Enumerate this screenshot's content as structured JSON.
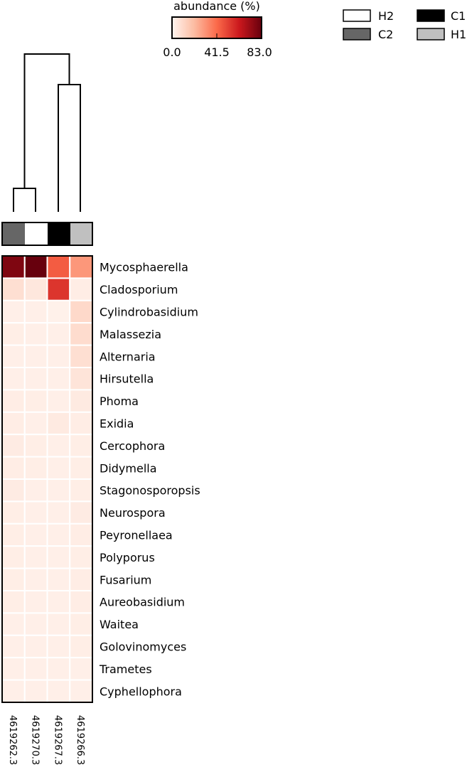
{
  "colorbar": {
    "title": "abundance (%)",
    "ticks": [
      "0.0",
      "41.5",
      "83.0"
    ],
    "min": 0,
    "max": 83.0,
    "colors": [
      "#fff5f0",
      "#fcbba1",
      "#fb6a4a",
      "#cb181d",
      "#67000d"
    ]
  },
  "group_legend": [
    {
      "label": "H2",
      "color": "#ffffff"
    },
    {
      "label": "C1",
      "color": "#000000"
    },
    {
      "label": "C2",
      "color": "#666666"
    },
    {
      "label": "H1",
      "color": "#c0c0c0"
    }
  ],
  "chart_data": {
    "type": "heatmap",
    "samples": [
      "4619262.3",
      "4619270.3",
      "4619267.3",
      "4619266.3"
    ],
    "sample_groups": [
      "C2",
      "H2",
      "C1",
      "H1"
    ],
    "rows": [
      "Mycosphaerella",
      "Cladosporium",
      "Cylindrobasidium",
      "Malassezia",
      "Alternaria",
      "Hirsutella",
      "Phoma",
      "Exidia",
      "Cercophora",
      "Didymella",
      "Stagonosporopsis",
      "Neurospora",
      "Peyronellaea",
      "Polyporus",
      "Fusarium",
      "Aureobasidium",
      "Waitea",
      "Golovinomyces",
      "Trametes",
      "Cyphellophora"
    ],
    "values": [
      [
        78.0,
        83.0,
        45.0,
        30.0
      ],
      [
        8.0,
        5.0,
        55.0,
        3.0
      ],
      [
        2.0,
        2.0,
        1.5,
        10.0
      ],
      [
        2.5,
        2.0,
        2.0,
        9.0
      ],
      [
        2.0,
        2.0,
        2.0,
        8.0
      ],
      [
        2.0,
        2.0,
        2.0,
        6.0
      ],
      [
        3.0,
        2.5,
        2.0,
        4.0
      ],
      [
        3.0,
        2.0,
        4.0,
        3.0
      ],
      [
        3.5,
        2.5,
        2.0,
        2.5
      ],
      [
        3.0,
        2.5,
        2.0,
        2.5
      ],
      [
        3.5,
        2.0,
        2.0,
        2.5
      ],
      [
        2.5,
        2.0,
        2.0,
        3.5
      ],
      [
        2.5,
        2.0,
        2.0,
        3.0
      ],
      [
        2.5,
        2.0,
        2.0,
        2.5
      ],
      [
        2.5,
        2.0,
        2.0,
        3.0
      ],
      [
        2.5,
        2.0,
        2.0,
        3.0
      ],
      [
        2.0,
        2.0,
        2.0,
        2.5
      ],
      [
        2.0,
        2.0,
        2.0,
        2.5
      ],
      [
        2.0,
        2.0,
        2.0,
        2.0
      ],
      [
        2.0,
        2.0,
        2.0,
        2.0
      ]
    ],
    "dendrogram": "((4619262.3,4619270.3),(4619267.3,4619266.3))"
  }
}
